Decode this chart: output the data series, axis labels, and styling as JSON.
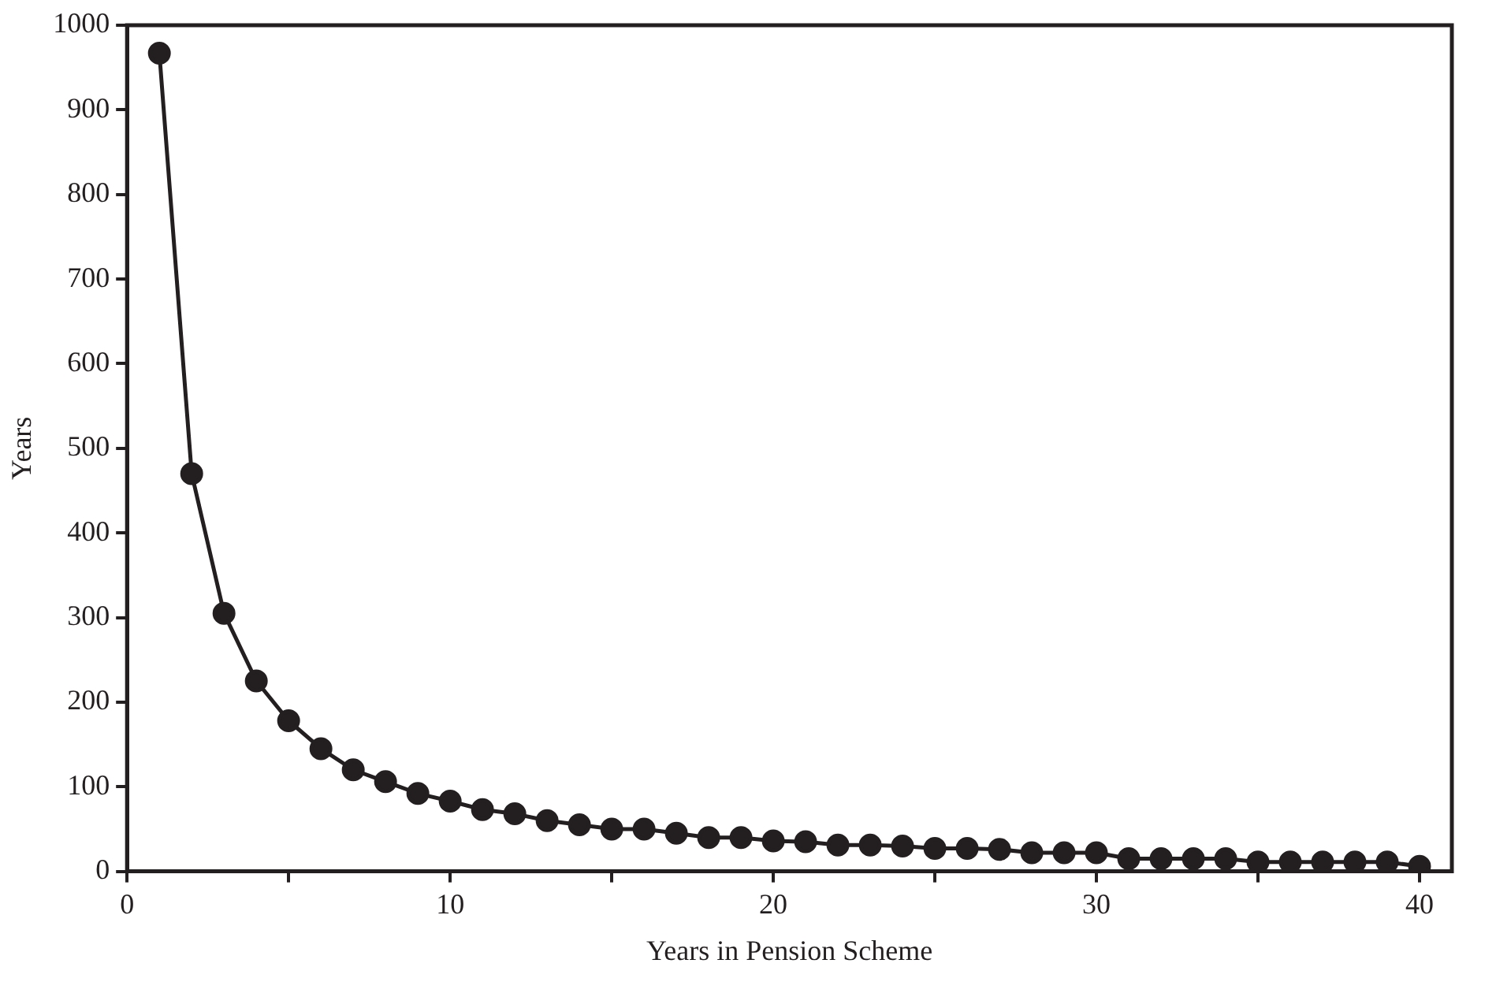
{
  "chart_data": {
    "type": "line",
    "xlabel": "Years in Pension Scheme",
    "ylabel": "Years",
    "x": [
      1,
      2,
      3,
      4,
      5,
      6,
      7,
      8,
      9,
      10,
      11,
      12,
      13,
      14,
      15,
      16,
      17,
      18,
      19,
      20,
      21,
      22,
      23,
      24,
      25,
      26,
      27,
      28,
      29,
      30,
      31,
      32,
      33,
      34,
      35,
      36,
      37,
      38,
      39,
      40
    ],
    "series": [
      {
        "color": "#231f20",
        "values": [
          967,
          470,
          305,
          225,
          178,
          145,
          120,
          106,
          92,
          83,
          73,
          68,
          60,
          55,
          50,
          50,
          45,
          40,
          40,
          36,
          35,
          31,
          31,
          30,
          27,
          27,
          26,
          22,
          22,
          22,
          15,
          15,
          15,
          15,
          11,
          11,
          11,
          11,
          11,
          6
        ]
      }
    ],
    "xlim": [
      0,
      41
    ],
    "xticks": [
      0,
      {
        "value": 5,
        "label": null
      },
      10,
      {
        "value": 15,
        "label": null
      },
      20,
      {
        "value": 25,
        "label": null
      },
      30,
      {
        "value": 35,
        "label": null
      },
      40
    ],
    "ylim": [
      0,
      1000
    ],
    "yticks": [
      0,
      100,
      200,
      300,
      400,
      500,
      600,
      700,
      800,
      900,
      1000
    ],
    "grid": false,
    "legend": false,
    "marker": "circle",
    "line_style": "solid"
  }
}
